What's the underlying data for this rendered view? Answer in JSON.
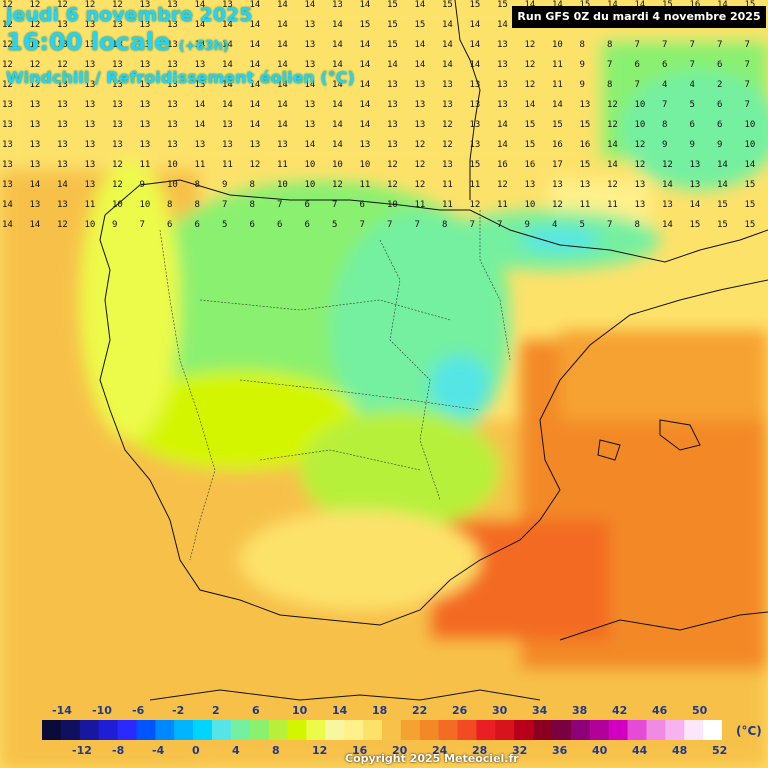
{
  "map": {
    "date_line": "jeudi 6 novembre 2025",
    "time_line": "16:00 locale",
    "horizon": "(+63h)",
    "parameter": "Windchill / Refroidissement éolien (°C)",
    "run_info": "Run GFS 0Z du mardi 4 novembre 2025",
    "copyright": "Copyright 2025 Meteociel.fr",
    "unit": "(°C)"
  },
  "legend": {
    "top_labels": [
      "-14",
      "-10",
      "-6",
      "-2",
      "2",
      "6",
      "10",
      "14",
      "18",
      "22",
      "26",
      "30",
      "34",
      "38",
      "42",
      "46",
      "50"
    ],
    "bottom_labels": [
      "-12",
      "-8",
      "-4",
      "0",
      "4",
      "8",
      "12",
      "16",
      "20",
      "24",
      "28",
      "32",
      "36",
      "40",
      "44",
      "48",
      "52"
    ],
    "colors": [
      "#0b0b3b",
      "#101060",
      "#1717a0",
      "#1e1ed6",
      "#2a2aff",
      "#0055ff",
      "#0088ff",
      "#00b5ff",
      "#00d5ff",
      "#55e5e5",
      "#74f0a0",
      "#8af070",
      "#b7f03a",
      "#d4f500",
      "#ecfa4a",
      "#f7f7a0",
      "#fff08a",
      "#fde26a",
      "#f7c14a",
      "#f6a233",
      "#f38926",
      "#f36b24",
      "#f04b23",
      "#ea1f24",
      "#d7141c",
      "#b8001d",
      "#8b0020",
      "#7a0042",
      "#8d0078",
      "#b2009b",
      "#d100c0",
      "#e44bd6",
      "#f18ae5",
      "#f7b2f0",
      "#fce6fb",
      "#ffffff"
    ]
  },
  "grid_rows": [
    "12 12 12 12 12 13 13 14 13 14 14 14 13 14 15 14 15 15 15 14 14 15 14 14 15 16 14 15",
    "12 12 13 13 13 13 13 14 14 14 14 13 14 15 15 15 14 14 14 13 12 11 9 7 4 7 8 9",
    "12 12 13 13 13 13 13 14 14 14 14 13 14 14 15 14 14 14 13 12 10 8 8 7 7 7 7 7",
    "12 12 12 13 13 13 13 13 14 14 14 13 14 14 14 14 14 14 13 12 11 9 7 6 6 7 6 7",
    "12 12 13 13 13 13 13 13 14 14 14 14 14 14 13 13 13 13 13 12 11 9 8 7 4 4 2 7",
    "13 13 13 13 13 13 13 14 14 14 14 13 14 14 13 13 13 13 13 14 14 13 12 10 7 5 6 7",
    "13 13 13 13 13 13 13 14 13 14 14 13 14 14 13 13 12 13 14 15 15 15 12 10 8 6 6 10",
    "13 13 13 13 13 13 13 13 13 13 13 14 14 13 13 12 12 13 14 15 16 16 14 12 9 9 9 10",
    "13 13 13 13 12 11 10 11 11 12 11 10 10 10 12 12 13 15 16 16 17 15 14 12 12 13 14 14",
    "13 14 14 13 12 9 10 8 9 8 10 10 12 11 12 12 11 11 12 13 13 13 12 13 14 13 14 15",
    "14 13 13 11 10 10 8 8 7 8 7 6 7 6 10 11 11 12 11 10 12 11 11 13 13 14 15 15",
    "14 14 12 10 9 7 6 6 5 6 6 6 5 7 7 7 8 7 7 9 4 5 7 8 14 15 15 15"
  ]
}
